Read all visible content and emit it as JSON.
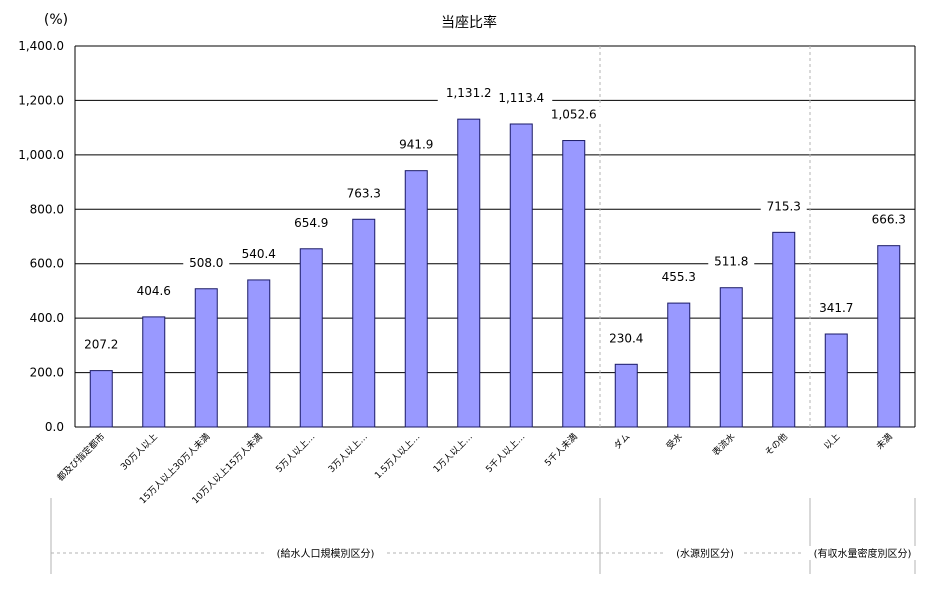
{
  "colors": {
    "bar_fill": "#9999ff",
    "bar_stroke": "#1a1a66",
    "grid": "#000000",
    "separator": "#b3b3b3",
    "text": "#000000"
  },
  "chart_data": {
    "type": "bar",
    "title": "当座比率",
    "ylabel": "(%)",
    "xlabel": "",
    "ylim": [
      0,
      1400
    ],
    "yticks": [
      0,
      200,
      400,
      600,
      800,
      1000,
      1200,
      1400
    ],
    "ytick_labels": [
      "0.0",
      "200.0",
      "400.0",
      "600.0",
      "800.0",
      "1,000.0",
      "1,200.0",
      "1,400.0"
    ],
    "grid": true,
    "categories": [
      "都及び指定都市",
      "30万人以上",
      "15万人以上30万人未満",
      "10万人以上15万人未満",
      "5万人以上…",
      "3万人以上…",
      "1.5万人以上…",
      "1万人以上…",
      "5千人以上…",
      "5千人未満",
      "ダム",
      "受水",
      "表流水",
      "その他",
      "以上",
      "未満"
    ],
    "values": [
      207.2,
      404.6,
      508.0,
      540.4,
      654.9,
      763.3,
      941.9,
      1131.2,
      1113.4,
      1052.6,
      230.4,
      455.3,
      511.8,
      715.3,
      341.7,
      666.3
    ],
    "value_labels": [
      "207.2",
      "404.6",
      "508.0",
      "540.4",
      "654.9",
      "763.3",
      "941.9",
      "1,131.2",
      "1,113.4",
      "1,052.6",
      "230.4",
      "455.3",
      "511.8",
      "715.3",
      "341.7",
      "666.3"
    ],
    "groups": [
      {
        "label": "(給水人口規模別区分)",
        "count": 10
      },
      {
        "label": "(水源別区分)",
        "count": 4
      },
      {
        "label": "(有収水量密度別区分)",
        "count": 2
      }
    ]
  }
}
